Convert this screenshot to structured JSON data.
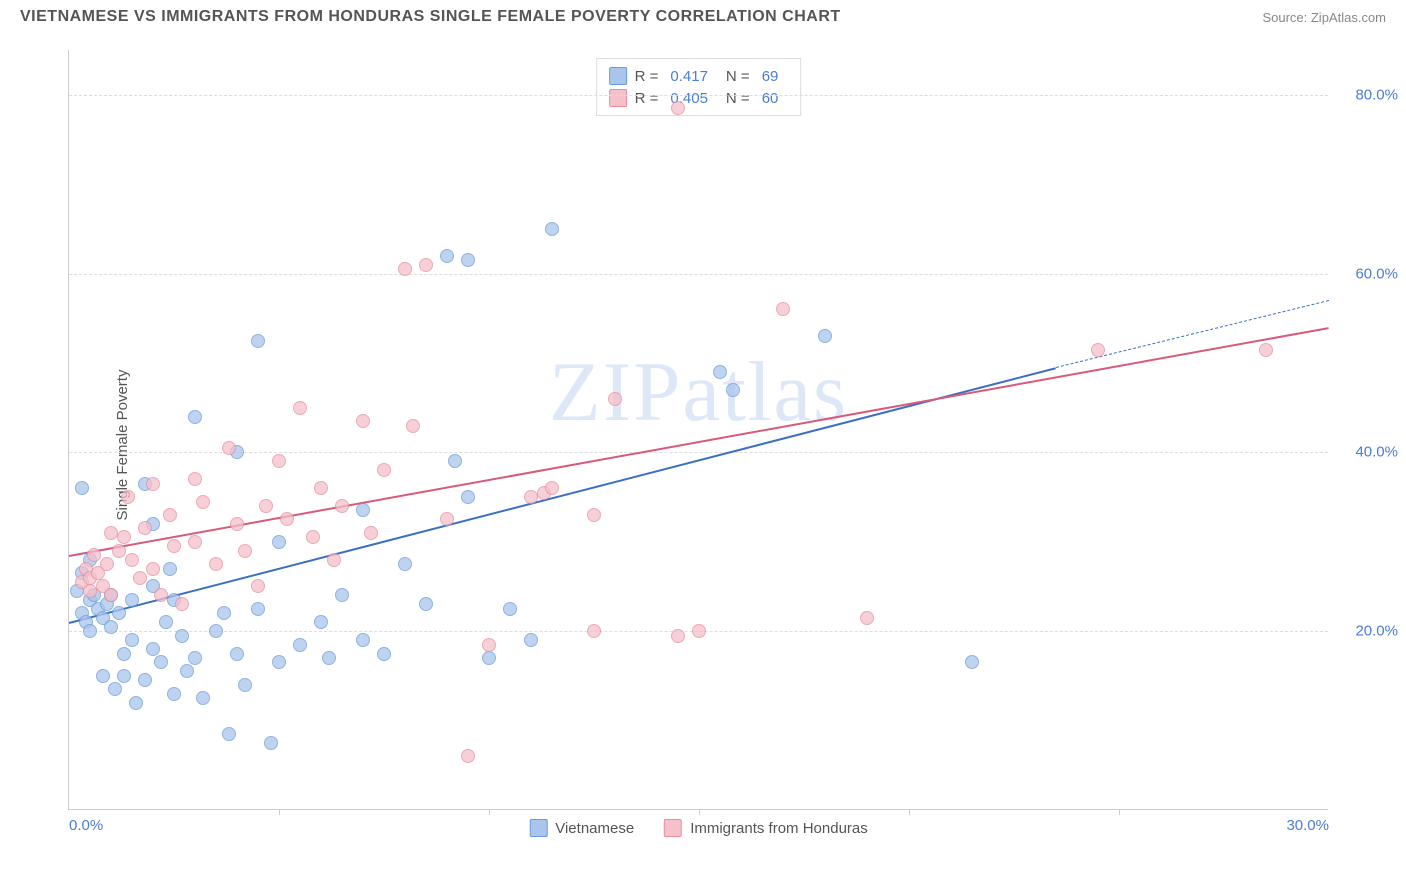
{
  "title": "VIETNAMESE VS IMMIGRANTS FROM HONDURAS SINGLE FEMALE POVERTY CORRELATION CHART",
  "source": "Source: ZipAtlas.com",
  "watermark": "ZIPatlas",
  "y_axis_label": "Single Female Poverty",
  "chart": {
    "type": "scatter",
    "xlim": [
      0,
      30
    ],
    "ylim": [
      0,
      85
    ],
    "x_ticks": [
      0,
      30
    ],
    "x_tick_labels": [
      "0.0%",
      "30.0%"
    ],
    "x_minor_tick_step": 5,
    "y_ticks": [
      20,
      40,
      60,
      80
    ],
    "y_tick_labels": [
      "20.0%",
      "40.0%",
      "60.0%",
      "80.0%"
    ],
    "background_color": "#ffffff",
    "grid_color": "#dddddd",
    "axis_color": "#cccccc",
    "tick_label_color": "#4a7dd4",
    "label_color": "#555555",
    "title_color": "#555555",
    "title_fontsize": 16,
    "label_fontsize": 15,
    "tick_fontsize": 15,
    "marker_size": 14,
    "marker_opacity": 0.75,
    "series": [
      {
        "name": "Vietnamese",
        "fill_color": "#a9c5ec",
        "border_color": "#6a9ad8",
        "line_color": "#3a6fc5",
        "R": "0.417",
        "N": "69",
        "trend": {
          "x1": 0,
          "y1": 21,
          "x2": 23.5,
          "y2": 49.5,
          "dash_to_x": 30,
          "dash_to_y": 57
        },
        "points": [
          [
            0.2,
            24.5
          ],
          [
            0.3,
            22
          ],
          [
            0.3,
            26.5
          ],
          [
            0.4,
            21
          ],
          [
            0.5,
            23.5
          ],
          [
            0.5,
            20
          ],
          [
            0.6,
            24
          ],
          [
            0.7,
            22.5
          ],
          [
            0.8,
            21.5
          ],
          [
            0.9,
            23
          ],
          [
            0.3,
            36
          ],
          [
            0.5,
            28
          ],
          [
            1.0,
            20.5
          ],
          [
            1.0,
            24
          ],
          [
            1.1,
            13.5
          ],
          [
            1.2,
            22
          ],
          [
            1.3,
            15
          ],
          [
            1.3,
            17.5
          ],
          [
            1.5,
            19
          ],
          [
            1.5,
            23.5
          ],
          [
            1.6,
            12
          ],
          [
            1.8,
            14.5
          ],
          [
            1.8,
            36.5
          ],
          [
            2.0,
            18
          ],
          [
            2.0,
            25
          ],
          [
            2.2,
            16.5
          ],
          [
            2.3,
            21
          ],
          [
            2.4,
            27
          ],
          [
            2.5,
            13
          ],
          [
            2.5,
            23.5
          ],
          [
            2.7,
            19.5
          ],
          [
            2.8,
            15.5
          ],
          [
            3.0,
            17
          ],
          [
            3.0,
            44
          ],
          [
            3.2,
            12.5
          ],
          [
            3.5,
            20
          ],
          [
            3.7,
            22
          ],
          [
            3.8,
            8.5
          ],
          [
            4.0,
            17.5
          ],
          [
            4.0,
            40
          ],
          [
            4.2,
            14
          ],
          [
            4.5,
            22.5
          ],
          [
            4.5,
            52.5
          ],
          [
            4.8,
            7.5
          ],
          [
            5.0,
            30
          ],
          [
            5.0,
            16.5
          ],
          [
            5.5,
            18.5
          ],
          [
            6.0,
            21
          ],
          [
            6.2,
            17
          ],
          [
            6.5,
            24
          ],
          [
            7.0,
            19
          ],
          [
            7.0,
            33.5
          ],
          [
            7.5,
            17.5
          ],
          [
            8.0,
            27.5
          ],
          [
            8.5,
            23
          ],
          [
            9.0,
            62
          ],
          [
            9.2,
            39
          ],
          [
            9.5,
            35
          ],
          [
            9.5,
            61.5
          ],
          [
            10.0,
            17
          ],
          [
            10.5,
            22.5
          ],
          [
            11.0,
            19
          ],
          [
            11.5,
            65
          ],
          [
            15.5,
            49
          ],
          [
            15.8,
            47
          ],
          [
            18.0,
            53
          ],
          [
            21.5,
            16.5
          ],
          [
            0.8,
            15
          ],
          [
            2.0,
            32
          ]
        ]
      },
      {
        "name": "Immigrants from Honduras",
        "fill_color": "#f4c0ca",
        "border_color": "#e88da0",
        "line_color": "#d85a7a",
        "R": "0.405",
        "N": "60",
        "trend": {
          "x1": 0,
          "y1": 28.5,
          "x2": 30,
          "y2": 54
        },
        "points": [
          [
            0.3,
            25.5
          ],
          [
            0.4,
            27
          ],
          [
            0.5,
            26
          ],
          [
            0.5,
            24.5
          ],
          [
            0.6,
            28.5
          ],
          [
            0.7,
            26.5
          ],
          [
            0.8,
            25
          ],
          [
            0.9,
            27.5
          ],
          [
            1.0,
            31
          ],
          [
            1.0,
            24
          ],
          [
            1.2,
            29
          ],
          [
            1.3,
            30.5
          ],
          [
            1.4,
            35
          ],
          [
            1.5,
            28
          ],
          [
            1.7,
            26
          ],
          [
            1.8,
            31.5
          ],
          [
            2.0,
            27
          ],
          [
            2.0,
            36.5
          ],
          [
            2.2,
            24
          ],
          [
            2.4,
            33
          ],
          [
            2.5,
            29.5
          ],
          [
            2.7,
            23
          ],
          [
            3.0,
            30
          ],
          [
            3.0,
            37
          ],
          [
            3.2,
            34.5
          ],
          [
            3.5,
            27.5
          ],
          [
            3.8,
            40.5
          ],
          [
            4.0,
            32
          ],
          [
            4.2,
            29
          ],
          [
            4.5,
            25
          ],
          [
            4.7,
            34
          ],
          [
            5.0,
            39
          ],
          [
            5.2,
            32.5
          ],
          [
            5.5,
            45
          ],
          [
            5.8,
            30.5
          ],
          [
            6.0,
            36
          ],
          [
            6.3,
            28
          ],
          [
            6.5,
            34
          ],
          [
            7.0,
            43.5
          ],
          [
            7.2,
            31
          ],
          [
            7.5,
            38
          ],
          [
            8.0,
            60.5
          ],
          [
            8.2,
            43
          ],
          [
            8.5,
            61
          ],
          [
            9.0,
            32.5
          ],
          [
            9.5,
            6
          ],
          [
            10.0,
            18.5
          ],
          [
            11.0,
            35
          ],
          [
            11.3,
            35.5
          ],
          [
            11.5,
            36
          ],
          [
            12.5,
            33
          ],
          [
            12.5,
            20
          ],
          [
            13.0,
            46
          ],
          [
            14.5,
            19.5
          ],
          [
            14.5,
            78.5
          ],
          [
            15.0,
            20
          ],
          [
            17.0,
            56
          ],
          [
            19.0,
            21.5
          ],
          [
            24.5,
            51.5
          ],
          [
            28.5,
            51.5
          ]
        ]
      }
    ]
  },
  "stats_box": {
    "rows": [
      {
        "swatch_fill": "#a9c5ec",
        "swatch_border": "#6a9ad8",
        "r_label": "R =",
        "r_value": "0.417",
        "n_label": "N =",
        "n_value": "69"
      },
      {
        "swatch_fill": "#f4c0ca",
        "swatch_border": "#e88da0",
        "r_label": "R =",
        "r_value": "0.405",
        "n_label": "N =",
        "n_value": "60"
      }
    ]
  },
  "bottom_legend": [
    {
      "swatch_fill": "#a9c5ec",
      "swatch_border": "#6a9ad8",
      "label": "Vietnamese"
    },
    {
      "swatch_fill": "#f4c0ca",
      "swatch_border": "#e88da0",
      "label": "Immigrants from Honduras"
    }
  ]
}
